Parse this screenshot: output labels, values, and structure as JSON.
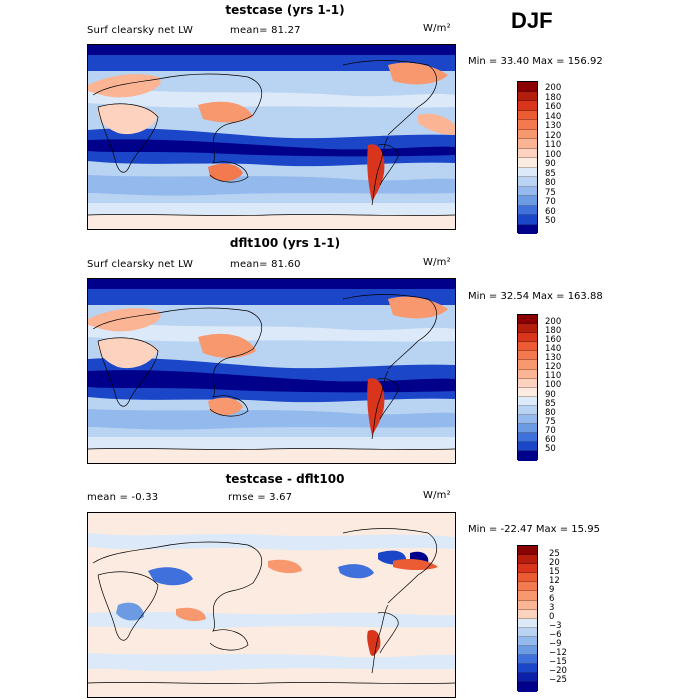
{
  "season": "DJF",
  "units": "W/m²",
  "panels": [
    {
      "title": "testcase (yrs 1-1)",
      "variable": "Surf clearsky net LW",
      "stat": "mean=  81.27",
      "minmax": "Min =  33.40 Max = 156.92",
      "colorbar": {
        "labels": [
          "200",
          "180",
          "160",
          "140",
          "130",
          "120",
          "110",
          "100",
          "90",
          "85",
          "80",
          "75",
          "70",
          "60",
          "50"
        ],
        "colors": [
          "#8b0000",
          "#b51d0d",
          "#d8351c",
          "#ec5c34",
          "#f3794e",
          "#f8986e",
          "#fbb595",
          "#fdd3c0",
          "#fcebe0",
          "#dbe9f8",
          "#b9d3f3",
          "#94b9ec",
          "#6c9be4",
          "#3f70dc",
          "#1c46c8",
          "#00008b"
        ]
      },
      "chart_data": {
        "type": "heatmap",
        "title": "testcase (yrs 1-1)",
        "variable": "Surf clearsky net LW",
        "units": "W/m²",
        "mean": 81.27,
        "min": 33.4,
        "max": 156.92,
        "levels": [
          50,
          60,
          70,
          75,
          80,
          85,
          90,
          100,
          110,
          120,
          130,
          140,
          160,
          180,
          200
        ],
        "xrange": [
          0,
          360
        ],
        "yrange": [
          -90,
          90
        ]
      }
    },
    {
      "title": "dflt100 (yrs 1-1)",
      "variable": "Surf clearsky net LW",
      "stat": "mean=  81.60",
      "minmax": "Min =  32.54 Max = 163.88",
      "colorbar": {
        "labels": [
          "200",
          "180",
          "160",
          "140",
          "130",
          "120",
          "110",
          "100",
          "90",
          "85",
          "80",
          "75",
          "70",
          "60",
          "50"
        ],
        "colors": [
          "#8b0000",
          "#b51d0d",
          "#d8351c",
          "#ec5c34",
          "#f3794e",
          "#f8986e",
          "#fbb595",
          "#fdd3c0",
          "#fcebe0",
          "#dbe9f8",
          "#b9d3f3",
          "#94b9ec",
          "#6c9be4",
          "#3f70dc",
          "#1c46c8",
          "#00008b"
        ]
      },
      "chart_data": {
        "type": "heatmap",
        "title": "dflt100 (yrs 1-1)",
        "variable": "Surf clearsky net LW",
        "units": "W/m²",
        "mean": 81.6,
        "min": 32.54,
        "max": 163.88,
        "levels": [
          50,
          60,
          70,
          75,
          80,
          85,
          90,
          100,
          110,
          120,
          130,
          140,
          160,
          180,
          200
        ],
        "xrange": [
          0,
          360
        ],
        "yrange": [
          -90,
          90
        ]
      }
    },
    {
      "title": "testcase - dflt100",
      "stat": "mean =   -0.33",
      "rmse": "rmse =    3.67",
      "minmax": "Min = -22.47 Max =  15.95",
      "colorbar": {
        "labels": [
          "25",
          "20",
          "15",
          "12",
          "9",
          "6",
          "3",
          "0",
          "−3",
          "−6",
          "−9",
          "−12",
          "−15",
          "−20",
          "−25"
        ],
        "colors": [
          "#8b0000",
          "#b51d0d",
          "#d8351c",
          "#ec5c34",
          "#f3794e",
          "#f8986e",
          "#fbb595",
          "#fdd3c0",
          "#dbe9f8",
          "#b9d3f3",
          "#94b9ec",
          "#6c9be4",
          "#3f70dc",
          "#1c46c8",
          "#0d1fa8",
          "#00008b"
        ]
      },
      "chart_data": {
        "type": "heatmap",
        "title": "testcase - dflt100",
        "units": "W/m²",
        "mean": -0.33,
        "rmse": 3.67,
        "min": -22.47,
        "max": 15.95,
        "levels": [
          -25,
          -20,
          -15,
          -12,
          -9,
          -6,
          -3,
          0,
          3,
          6,
          9,
          12,
          15,
          20,
          25
        ],
        "xrange": [
          0,
          360
        ],
        "yrange": [
          -90,
          90
        ]
      }
    }
  ]
}
